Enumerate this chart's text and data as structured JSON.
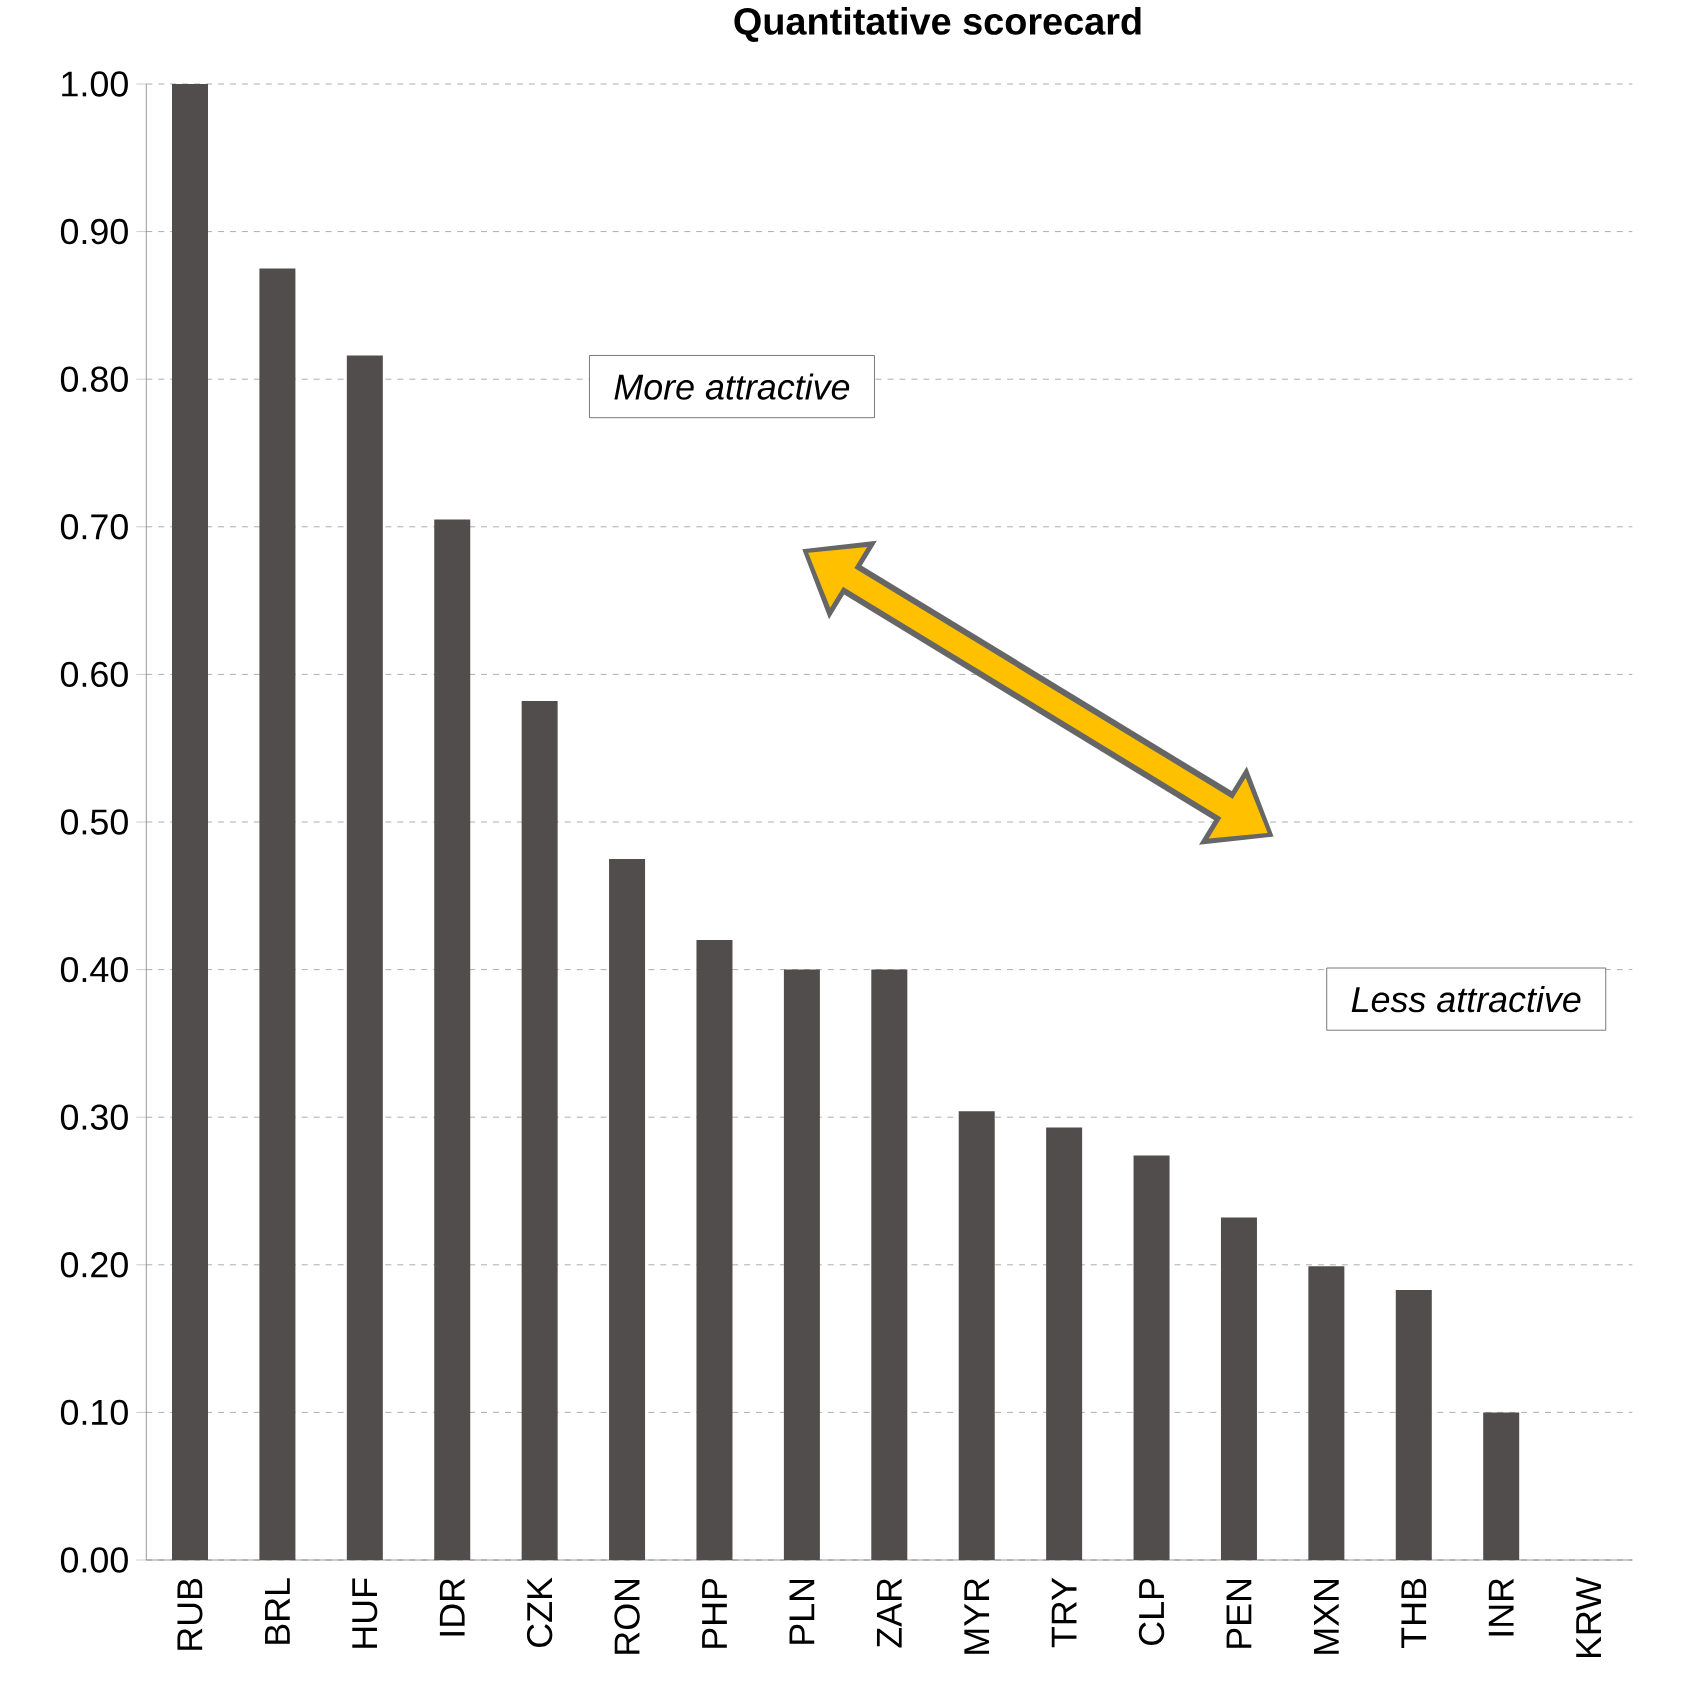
{
  "chart_data": {
    "type": "bar",
    "title": "Quantitative scorecard",
    "categories": [
      "RUB",
      "BRL",
      "HUF",
      "IDR",
      "CZK",
      "RON",
      "PHP",
      "PLN",
      "ZAR",
      "MYR",
      "TRY",
      "CLP",
      "PEN",
      "MXN",
      "THB",
      "INR",
      "KRW"
    ],
    "values": [
      1.0,
      0.875,
      0.816,
      0.705,
      0.582,
      0.475,
      0.42,
      0.4,
      0.4,
      0.304,
      0.293,
      0.274,
      0.232,
      0.199,
      0.183,
      0.1,
      0.0
    ],
    "color": "#504d4c",
    "ylim": [
      0,
      1
    ],
    "yticks": [
      {
        "value": 0,
        "label": "0.00"
      },
      {
        "value": 0.1,
        "label": "0.10"
      },
      {
        "value": 0.2,
        "label": "0.20"
      },
      {
        "value": 0.3,
        "label": "0.30"
      },
      {
        "value": 0.4,
        "label": "0.40"
      },
      {
        "value": 0.5,
        "label": "0.50"
      },
      {
        "value": 0.6,
        "label": "0.60"
      },
      {
        "value": 0.7,
        "label": "0.70"
      },
      {
        "value": 0.8,
        "label": "0.80"
      },
      {
        "value": 0.9,
        "label": "0.90"
      },
      {
        "value": 1,
        "label": "1.00"
      }
    ],
    "grid": "y",
    "annotations": [
      "More attractive",
      "Less attractive"
    ]
  }
}
